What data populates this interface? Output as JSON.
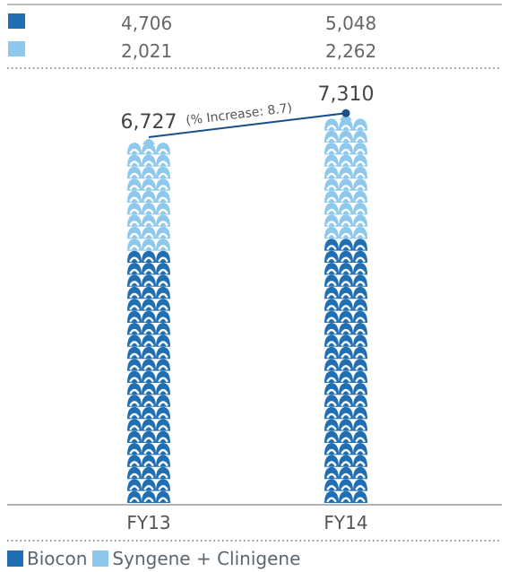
{
  "chart_data": {
    "type": "bar",
    "stacked": true,
    "categories": [
      "FY13",
      "FY14"
    ],
    "series": [
      {
        "name": "Biocon",
        "color": "#1f6fb2",
        "values": [
          4706,
          5048
        ]
      },
      {
        "name": "Syngene + Clinigene",
        "color": "#8ec8ec",
        "values": [
          2021,
          2262
        ]
      }
    ],
    "totals": [
      6727,
      7310
    ],
    "annotation": "(% Increase: 8.7)",
    "table_rows": [
      {
        "series": "Biocon",
        "color": "#1f6fb2",
        "values": [
          "4,706",
          "5,048"
        ]
      },
      {
        "series": "Syngene + Clinigene",
        "color": "#8ec8ec",
        "values": [
          "2,021",
          "2,262"
        ]
      }
    ],
    "total_labels": [
      "6,727",
      "7,310"
    ],
    "legend": [
      {
        "label": "Biocon",
        "color": "#1f6fb2"
      },
      {
        "label": "Syngene + Clinigene",
        "color": "#8ec8ec"
      }
    ],
    "line_color": "#1b4f8a"
  }
}
